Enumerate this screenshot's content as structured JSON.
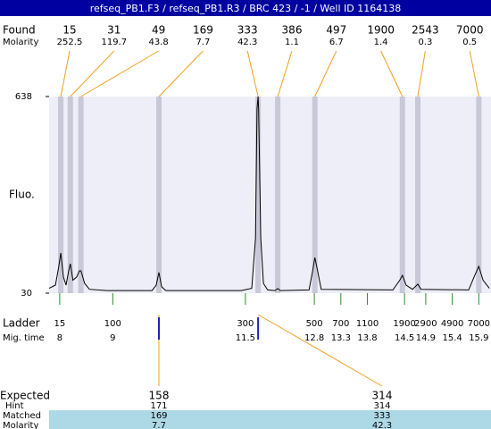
{
  "chart_data": {
    "type": "line",
    "title": "refseq_PB1.F3 / refseq_PB1.R3 / BRC 423 / -1 / Well ID 1164138",
    "found": {
      "label": "Found",
      "molarity_label": "Molarity",
      "sizes": [
        15,
        31,
        49,
        169,
        333,
        386,
        497,
        1900,
        2543,
        7000
      ],
      "molarity": [
        252.5,
        119.7,
        43.8,
        7.7,
        42.3,
        1.1,
        6.7,
        1.4,
        0.3,
        0.5
      ],
      "times": [
        8.02,
        8.2,
        8.4,
        9.87,
        11.74,
        12.11,
        12.81,
        14.46,
        14.75,
        15.9
      ]
    },
    "ylabel": "Fluo.",
    "x": [
      7.8,
      7.92,
      7.98,
      8.02,
      8.07,
      8.12,
      8.17,
      8.2,
      8.25,
      8.32,
      8.37,
      8.4,
      8.47,
      8.56,
      8.89,
      9.74,
      9.82,
      9.87,
      9.92,
      10.0,
      11.42,
      11.62,
      11.69,
      11.72,
      11.74,
      11.75,
      11.79,
      11.84,
      11.92,
      12.06,
      12.11,
      12.16,
      12.7,
      12.77,
      12.81,
      12.86,
      12.93,
      14.28,
      14.41,
      14.46,
      14.53,
      14.65,
      14.75,
      14.81,
      15.71,
      15.81,
      15.9,
      15.98,
      16.1
    ],
    "values": [
      45,
      55,
      110,
      154,
      80,
      55,
      100,
      121,
      70,
      80,
      99,
      99,
      60,
      42,
      38,
      38,
      55,
      94,
      50,
      38,
      38,
      45,
      200,
      600,
      638,
      600,
      200,
      60,
      40,
      38,
      44,
      38,
      40,
      100,
      140,
      100,
      42,
      40,
      70,
      85,
      55,
      42,
      58,
      42,
      40,
      80,
      113,
      70,
      45
    ],
    "color": "#000000",
    "xlim": [
      7.8,
      16.13
    ],
    "ylim": [
      30,
      638
    ],
    "yticks": [
      30,
      638
    ],
    "ladder": {
      "label": "Ladder",
      "time_label": "Mig. time",
      "sizes": [
        15,
        100,
        300,
        500,
        700,
        1100,
        1900,
        2900,
        4900,
        7000
      ],
      "times": [
        8,
        9,
        11.5,
        12.8,
        13.3,
        13.8,
        14.5,
        14.9,
        15.4,
        15.9
      ]
    },
    "expected": {
      "labels": [
        "Expected",
        "Hint",
        "Matched",
        "Molarity"
      ],
      "expected": [
        158,
        314
      ],
      "hint": [
        171,
        314
      ],
      "matched": [
        169,
        333
      ],
      "molarity": [
        7.7,
        42.3
      ]
    }
  }
}
